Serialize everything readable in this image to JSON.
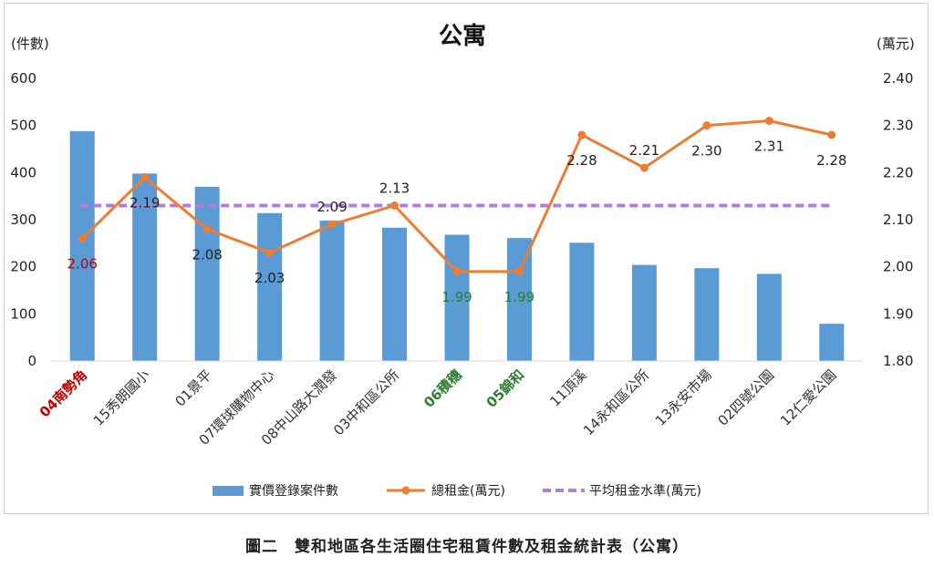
{
  "chart_data": {
    "type": "bar",
    "title": "公寓",
    "ylabel_left": "(件數)",
    "ylabel_right": "(萬元)",
    "ylim_left": [
      0,
      600
    ],
    "yticks_left": [
      "0",
      "100",
      "200",
      "300",
      "400",
      "500",
      "600"
    ],
    "ylim_right": [
      1.8,
      2.4
    ],
    "yticks_right": [
      "1.80",
      "1.90",
      "2.00",
      "2.10",
      "2.20",
      "2.30",
      "2.40"
    ],
    "categories": [
      "04南勢角",
      "15秀朗國小",
      "01景平",
      "07環球購物中心",
      "08中山路大潤發",
      "03中和區公所",
      "06積穗",
      "05錦和",
      "11頂溪",
      "14永和區公所",
      "13永安市場",
      "02四號公園",
      "12仁愛公園"
    ],
    "category_colors": [
      "#c00000",
      "#333333",
      "#333333",
      "#333333",
      "#333333",
      "#333333",
      "#2e7d32",
      "#2e7d32",
      "#333333",
      "#333333",
      "#333333",
      "#333333",
      "#333333"
    ],
    "series": [
      {
        "name": "實價登錄案件數",
        "type": "bar",
        "axis": "left",
        "color": "#5b9bd5",
        "values": [
          488,
          398,
          370,
          314,
          298,
          283,
          268,
          261,
          251,
          204,
          197,
          185,
          79
        ]
      },
      {
        "name": "總租金(萬元)",
        "type": "line",
        "axis": "right",
        "color": "#ed7d31",
        "values": [
          2.06,
          2.19,
          2.08,
          2.03,
          2.09,
          2.13,
          1.99,
          1.99,
          2.28,
          2.21,
          2.3,
          2.31,
          2.28
        ],
        "labels": [
          "2.06",
          "2.19",
          "2.08",
          "2.03",
          "2.09",
          "2.13",
          "1.99",
          "1.99",
          "2.28",
          "2.21",
          "2.30",
          "2.31",
          "2.28"
        ],
        "label_colors": [
          "#c00000",
          "#222222",
          "#222222",
          "#222222",
          "#222222",
          "#222222",
          "#2e7d32",
          "#2e7d32",
          "#222222",
          "#222222",
          "#222222",
          "#222222",
          "#222222"
        ]
      },
      {
        "name": "平均租金水準(萬元)",
        "type": "line-dashed",
        "axis": "right",
        "color": "#b27fd6",
        "value": 2.13
      }
    ],
    "legend_position": "bottom",
    "grid": false
  },
  "caption": "圖二　雙和地區各生活圈住宅租賃件數及租金統計表（公寓）"
}
